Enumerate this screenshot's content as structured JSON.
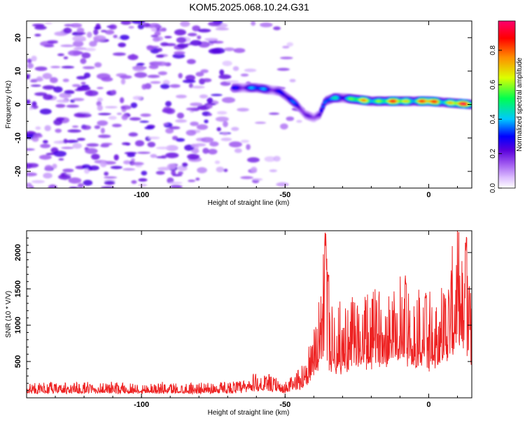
{
  "title": "KOM5.2025.068.10.24.G31",
  "chart_data": [
    {
      "type": "heatmap",
      "xlabel": "Height of straight line (km)",
      "ylabel": "Frequency (Hz)",
      "xlim": [
        -140,
        15
      ],
      "ylim": [
        -25,
        25
      ],
      "xticks": [
        -100,
        -50,
        0
      ],
      "xtick_labels": [
        "-100",
        "-50",
        "0"
      ],
      "yticks": [
        20,
        10,
        0,
        -10,
        -20
      ],
      "ytick_labels": [
        "20",
        "10",
        "0",
        "-10",
        "-20"
      ],
      "colorbar": {
        "label": "Normalized spectral amplitude",
        "range": [
          0,
          0.97
        ],
        "ticks": [
          0.0,
          0.2,
          0.4,
          0.6,
          0.8
        ],
        "tick_labels": [
          "0.0",
          "0.2",
          "0.4",
          "0.6",
          "0.8"
        ],
        "colors": [
          "#ffffff",
          "#cc99ff",
          "#7a1fe0",
          "#0000ff",
          "#00ffff",
          "#00ff00",
          "#ffff00",
          "#ff8000",
          "#ff0000",
          "#ff0066"
        ]
      },
      "ridge": {
        "description_points_x": [
          -68,
          -60,
          -52,
          -46,
          -43,
          -40,
          -38,
          -36,
          -33,
          -30,
          -20,
          -10,
          0,
          15
        ],
        "description_points_y": [
          5,
          5,
          4,
          0,
          -3,
          -4,
          -3,
          1,
          2,
          2,
          1,
          1,
          1,
          0
        ],
        "amplitude": [
          0.35,
          0.4,
          0.35,
          0.3,
          0.25,
          0.3,
          0.25,
          0.35,
          0.5,
          0.55,
          0.75,
          0.8,
          0.85,
          0.85
        ]
      },
      "grid": false,
      "legend": "none"
    },
    {
      "type": "line",
      "xlabel": "Height of straight line (km)",
      "ylabel": "SNR (10 * V/V)",
      "xlim": [
        -140,
        15
      ],
      "ylim": [
        0,
        2300
      ],
      "xticks": [
        -100,
        -50,
        0
      ],
      "xtick_labels": [
        "-100",
        "-50",
        "0"
      ],
      "yticks": [
        500,
        1000,
        1500,
        2000
      ],
      "ytick_labels": [
        "500",
        "1000",
        "1500",
        "2000"
      ],
      "line_color": "#ee2222",
      "envelope_x": [
        -140,
        -120,
        -100,
        -80,
        -65,
        -60,
        -55,
        -50,
        -45,
        -40,
        -38,
        -36,
        -35,
        -33,
        -30,
        -25,
        -20,
        -15,
        -10,
        -8,
        -5,
        0,
        5,
        8,
        10,
        12,
        15
      ],
      "envelope_y": [
        150,
        150,
        150,
        150,
        170,
        250,
        220,
        150,
        300,
        650,
        1100,
        1700,
        900,
        900,
        900,
        1000,
        1000,
        1150,
        1250,
        1150,
        1050,
        1000,
        1150,
        1400,
        1700,
        1300,
        1200
      ],
      "peaks": [
        {
          "x": -36,
          "y": 2300
        },
        {
          "x": -35,
          "y": 1750
        },
        {
          "x": -8,
          "y": 1720
        },
        {
          "x": -1,
          "y": 1500
        },
        {
          "x": 13,
          "y": 2230
        }
      ],
      "grid": false,
      "legend": "none"
    }
  ]
}
